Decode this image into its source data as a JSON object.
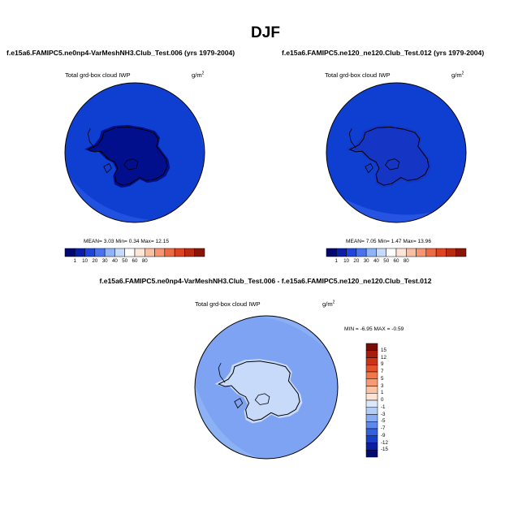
{
  "page_title": "DJF",
  "colors": {
    "ocean_dark_blue": "#0f3fd0",
    "antarctic_navy": "#020f8c",
    "mid_blue": "#2a5ae6",
    "diff_light_blue": "#8fb2f5",
    "diff_very_light": "#c7daf9"
  },
  "chart_data": [
    {
      "type": "heatmap",
      "title": "f.e15a6.FAMIPC5.ne0np4-VarMeshNH3.Club_Test.006 (yrs 1979-2004)",
      "variable": "Total grd-box cloud IWP",
      "units": "g/m2",
      "units_base": "g/m",
      "units_exp": "2",
      "projection": "polar stereographic, Southern Hemisphere",
      "stats": {
        "MEAN": 3.03,
        "Min": 0.34,
        "Max": 12.15
      },
      "stats_text": "MEAN=  3.03  Min=  0.34  Max=  12.15",
      "colorbar": {
        "orientation": "horizontal",
        "tick_labels": [
          "1",
          "10",
          "20",
          "30",
          "40",
          "50",
          "60",
          "80"
        ],
        "colors": [
          "#02066f",
          "#0a1fa8",
          "#1f44db",
          "#4a72ee",
          "#8eb3f7",
          "#c7dbf9",
          "#ffffff",
          "#fde6d8",
          "#f9bfa3",
          "#f59572",
          "#ec6b45",
          "#dd4421",
          "#b82a12",
          "#8b1408"
        ]
      },
      "approx_field": {
        "ocean": "1-10",
        "antarctica": "<1"
      }
    },
    {
      "type": "heatmap",
      "title": "f.e15a6.FAMIPC5.ne120_ne120.Club_Test.012 (yrs 1979-2004)",
      "variable": "Total grd-box cloud IWP",
      "units": "g/m2",
      "units_base": "g/m",
      "units_exp": "2",
      "projection": "polar stereographic, Southern Hemisphere",
      "stats": {
        "MEAN": 7.05,
        "Min": 1.47,
        "Max": 13.96
      },
      "stats_text": "MEAN=  7.05  Min=  1.47  Max=  13.96",
      "colorbar": {
        "orientation": "horizontal",
        "tick_labels": [
          "1",
          "10",
          "20",
          "30",
          "40",
          "50",
          "60",
          "80"
        ],
        "colors": [
          "#02066f",
          "#0a1fa8",
          "#1f44db",
          "#4a72ee",
          "#8eb3f7",
          "#c7dbf9",
          "#ffffff",
          "#fde6d8",
          "#f9bfa3",
          "#f59572",
          "#ec6b45",
          "#dd4421",
          "#b82a12",
          "#8b1408"
        ]
      },
      "approx_field": {
        "ocean": "1-10",
        "antarctica": "1-10"
      }
    },
    {
      "type": "heatmap",
      "title": "f.e15a6.FAMIPC5.ne0np4-VarMeshNH3.Club_Test.006 - f.e15a6.FAMIPC5.ne120_ne120.Club_Test.012",
      "variable": "Total grd-box cloud IWP",
      "units": "g/m2",
      "units_base": "g/m",
      "units_exp": "2",
      "projection": "polar stereographic, Southern Hemisphere",
      "stats": {
        "MIN": -6.95,
        "MAX": -0.59
      },
      "stats_text": "MIN =  -6.95  MAX =  -0.59",
      "colorbar": {
        "orientation": "vertical",
        "tick_labels": [
          "15",
          "12",
          "9",
          "7",
          "5",
          "3",
          "1",
          "0",
          "-1",
          "-3",
          "-5",
          "-7",
          "-9",
          "-12",
          "-15"
        ],
        "colors": [
          "#7a0b05",
          "#a81b0d",
          "#cc3318",
          "#e4532b",
          "#f27749",
          "#f79a74",
          "#fbc2a6",
          "#fde4d5",
          "#dbe7fb",
          "#b4cdf8",
          "#89acf3",
          "#5d88ec",
          "#3561e0",
          "#173fc9",
          "#0a1fa0",
          "#030a72"
        ]
      },
      "approx_field": {
        "ocean": "-5 to -3",
        "antarctica": "-3 to -1"
      }
    }
  ]
}
